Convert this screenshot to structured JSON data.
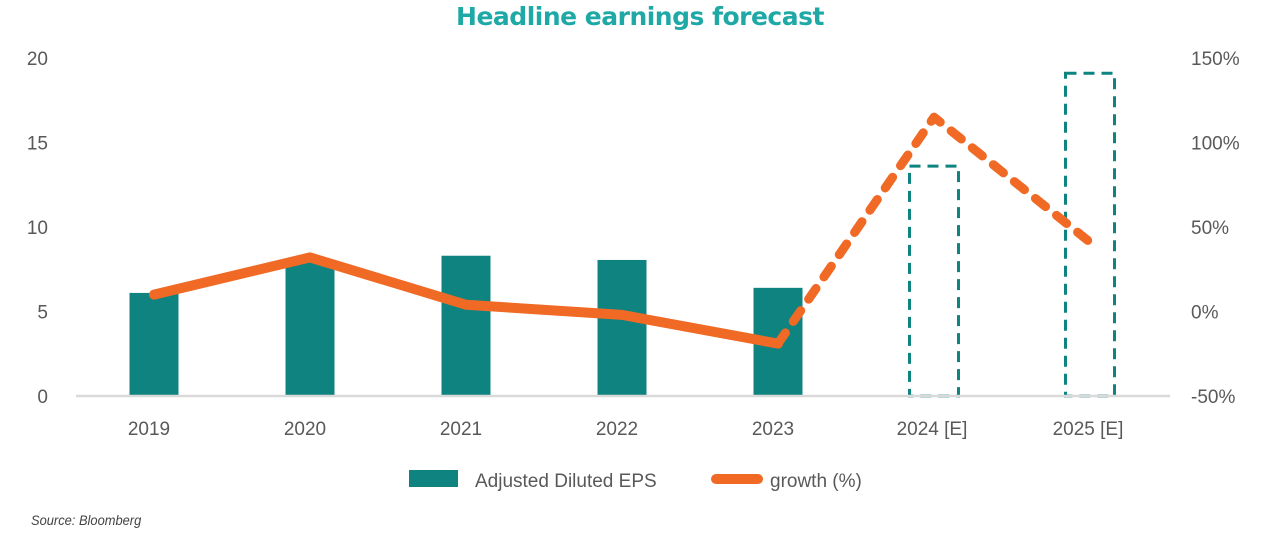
{
  "chart_data": {
    "type": "bar",
    "title": "Headline earnings forecast",
    "categories": [
      "2019",
      "2020",
      "2021",
      "2022",
      "2023",
      "2024 [E]",
      "2025 [E]"
    ],
    "estimated": [
      false,
      false,
      false,
      false,
      false,
      true,
      true
    ],
    "series": [
      {
        "name": "Adjusted Diluted EPS",
        "type": "bar",
        "axis": "left",
        "color": "#0f8380",
        "values": [
          6.1,
          7.9,
          8.3,
          8.05,
          6.4,
          13.6,
          19.1
        ]
      },
      {
        "name": "growth (%)",
        "type": "line",
        "axis": "right",
        "color": "#f06a26",
        "values": [
          10,
          32,
          4,
          -2,
          -19,
          115,
          41
        ]
      }
    ],
    "left_axis": {
      "ylim": [
        0,
        20
      ],
      "ticks": [
        "0",
        "5",
        "10",
        "15",
        "20"
      ],
      "tick_values": [
        0,
        5,
        10,
        15,
        20
      ]
    },
    "right_axis": {
      "ylim": [
        -50,
        150
      ],
      "ticks": [
        "-50%",
        "0%",
        "50%",
        "100%",
        "150%"
      ],
      "tick_values": [
        -50,
        0,
        50,
        100,
        150
      ]
    },
    "grid": false,
    "legend": "bottom",
    "xlabel": "",
    "ylabel": ""
  },
  "source": "Source: Bloomberg"
}
